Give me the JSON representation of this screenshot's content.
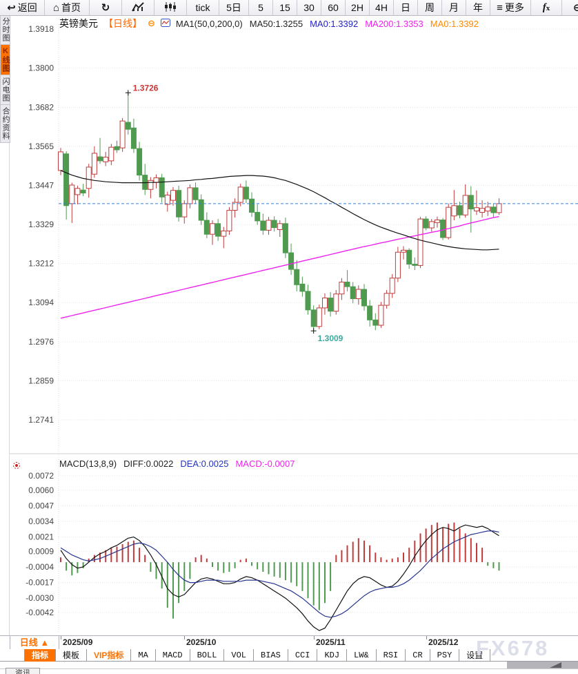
{
  "toolbar": {
    "items": [
      {
        "name": "back-button",
        "label": "返回",
        "icon": "back"
      },
      {
        "name": "home-button",
        "label": "首页",
        "icon": "home"
      },
      {
        "name": "refresh-button",
        "icon": "refresh"
      },
      {
        "name": "line-chart-button",
        "icon": "line-chart"
      },
      {
        "name": "candlestick-button",
        "icon": "candlestick"
      },
      {
        "name": "period-tick",
        "label": "tick"
      },
      {
        "name": "period-5d",
        "label": "5日"
      },
      {
        "name": "period-5",
        "label": "5"
      },
      {
        "name": "period-15",
        "label": "15"
      },
      {
        "name": "period-30",
        "label": "30"
      },
      {
        "name": "period-60",
        "label": "60"
      },
      {
        "name": "period-2h",
        "label": "2H"
      },
      {
        "name": "period-4h",
        "label": "4H"
      },
      {
        "name": "period-day",
        "label": "日"
      },
      {
        "name": "period-week",
        "label": "周"
      },
      {
        "name": "period-month",
        "label": "月"
      },
      {
        "name": "period-year",
        "label": "年"
      },
      {
        "name": "more-button",
        "label": "更多",
        "icon": "menu"
      },
      {
        "name": "fx-button",
        "label": "fx",
        "icon": "fx"
      },
      {
        "name": "zoom-out-button",
        "icon": "zoom-out"
      },
      {
        "name": "zoom-in-button",
        "icon": "zoom-in"
      }
    ]
  },
  "sidebar": {
    "items": [
      {
        "name": "sidebar-item-time-chart",
        "label": "分时图",
        "active": false
      },
      {
        "name": "sidebar-item-kline-chart",
        "label": "K线图",
        "active": true
      },
      {
        "name": "sidebar-item-lightning-chart",
        "label": "闪电图",
        "active": false
      },
      {
        "name": "sidebar-item-contract-info",
        "label": "合约资料",
        "active": false
      }
    ]
  },
  "price_header": {
    "symbol": "英镑美元",
    "period": "【日线】",
    "collapse_glyph": "⊖",
    "legend": [
      {
        "text": "MA1(50,0,200,0)",
        "color": "#222222"
      },
      {
        "text": "MA50:1.3255",
        "color": "#222222"
      },
      {
        "text": "MA0:1.3392",
        "color": "#2222cc"
      },
      {
        "text": "MA200:1.3353",
        "color": "#ee22ee"
      },
      {
        "text": "MA0:1.3392",
        "color": "#ff8800"
      }
    ]
  },
  "macd_header": {
    "items": [
      {
        "text": "MACD(13,8,9)",
        "color": "#222222"
      },
      {
        "text": "DIFF:0.0022",
        "color": "#222222"
      },
      {
        "text": "DEA:0.0025",
        "color": "#2233bb"
      },
      {
        "text": "MACD:-0.0007",
        "color": "#ee22ee"
      }
    ]
  },
  "x_axis": {
    "period_button": "日线 ▲"
  },
  "indicator_bar": {
    "tabs": [
      {
        "name": "tab-indicator",
        "label": "指标",
        "state": "active"
      },
      {
        "name": "tab-template",
        "label": "模板",
        "state": ""
      },
      {
        "name": "tab-vip-indicator",
        "label": "VIP指标",
        "state": "vip"
      },
      {
        "name": "tab-ma",
        "label": "MA",
        "state": "mono"
      },
      {
        "name": "tab-macd",
        "label": "MACD",
        "state": "mono"
      },
      {
        "name": "tab-boll",
        "label": "BOLL",
        "state": "mono"
      },
      {
        "name": "tab-vol",
        "label": "VOL",
        "state": "mono"
      },
      {
        "name": "tab-bias",
        "label": "BIAS",
        "state": "mono"
      },
      {
        "name": "tab-cci",
        "label": "CCI",
        "state": "mono"
      },
      {
        "name": "tab-kdj",
        "label": "KDJ",
        "state": "mono"
      },
      {
        "name": "tab-lw",
        "label": "LW&",
        "state": "mono"
      },
      {
        "name": "tab-rsi",
        "label": "RSI",
        "state": "mono"
      },
      {
        "name": "tab-cr",
        "label": "CR",
        "state": "mono"
      },
      {
        "name": "tab-psy",
        "label": "PSY",
        "state": "mono"
      },
      {
        "name": "tab-settings",
        "label": "设置",
        "state": ""
      }
    ]
  },
  "watermark": "FX678",
  "bottom_tab": "资讯",
  "chart_data": {
    "type": "candlestick+macd",
    "symbol": "英镑美元",
    "period": "日线",
    "colors": {
      "up": "#c23b3b",
      "down": "#4e9b50",
      "ma50": "#111111",
      "ma200": "#ee22ee",
      "price_line": "#2b7fd9",
      "diff": "#111111",
      "dea": "#26338f",
      "high_label": "#cc3333",
      "low_label": "#3aa99f",
      "grid": "#e6e6e6",
      "axis_text": "#444444"
    },
    "x_labels": [
      {
        "text": "2025/09",
        "index": 0
      },
      {
        "text": "2025/10",
        "index": 22
      },
      {
        "text": "2025/11",
        "index": 45
      },
      {
        "text": "2025/12",
        "index": 65
      }
    ],
    "price_pane": {
      "y_ticks": [
        1.3918,
        1.38,
        1.3682,
        1.3565,
        1.3447,
        1.3329,
        1.3212,
        1.3094,
        1.2976,
        1.2859,
        1.2741
      ],
      "current_price": 1.3392,
      "high_label": {
        "text": "1.3726",
        "index": 12,
        "price": 1.3726
      },
      "low_label": {
        "text": "1.3009",
        "index": 45,
        "price": 1.3009
      },
      "candles": [
        [
          1.3492,
          1.356,
          1.3478,
          1.3548
        ],
        [
          1.3542,
          1.355,
          1.3344,
          1.3386
        ],
        [
          1.3392,
          1.3455,
          1.3334,
          1.3448
        ],
        [
          1.3419,
          1.3446,
          1.339,
          1.3438
        ],
        [
          1.3433,
          1.3452,
          1.3415,
          1.3424
        ],
        [
          1.3438,
          1.3512,
          1.341,
          1.3502
        ],
        [
          1.3481,
          1.3565,
          1.347,
          1.3544
        ],
        [
          1.3533,
          1.359,
          1.3512,
          1.3521
        ],
        [
          1.3518,
          1.3548,
          1.3505,
          1.3532
        ],
        [
          1.3521,
          1.3572,
          1.3508,
          1.3562
        ],
        [
          1.3564,
          1.3582,
          1.3545,
          1.3554
        ],
        [
          1.356,
          1.365,
          1.3548,
          1.3641
        ],
        [
          1.3637,
          1.3726,
          1.36,
          1.3616
        ],
        [
          1.362,
          1.3648,
          1.3545,
          1.3558
        ],
        [
          1.3558,
          1.3578,
          1.3462,
          1.3478
        ],
        [
          1.3478,
          1.3512,
          1.3418,
          1.3435
        ],
        [
          1.3435,
          1.3472,
          1.3408,
          1.3462
        ],
        [
          1.3456,
          1.348,
          1.3438,
          1.347
        ],
        [
          1.347,
          1.3482,
          1.3395,
          1.3412
        ],
        [
          1.339,
          1.3428,
          1.3368,
          1.3418
        ],
        [
          1.3402,
          1.3442,
          1.3386,
          1.3432
        ],
        [
          1.3432,
          1.3446,
          1.3338,
          1.3352
        ],
        [
          1.3352,
          1.3402,
          1.3332,
          1.3392
        ],
        [
          1.3392,
          1.345,
          1.3378,
          1.344
        ],
        [
          1.344,
          1.3456,
          1.3392,
          1.3404
        ],
        [
          1.3404,
          1.342,
          1.3328,
          1.3342
        ],
        [
          1.3342,
          1.3366,
          1.3288,
          1.33
        ],
        [
          1.33,
          1.3342,
          1.3268,
          1.3332
        ],
        [
          1.3332,
          1.3346,
          1.328,
          1.3294
        ],
        [
          1.3294,
          1.3322,
          1.3258,
          1.331
        ],
        [
          1.331,
          1.3382,
          1.3298,
          1.3372
        ],
        [
          1.3372,
          1.3408,
          1.335,
          1.3396
        ],
        [
          1.3396,
          1.3452,
          1.3384,
          1.3442
        ],
        [
          1.3442,
          1.3462,
          1.3394,
          1.3406
        ],
        [
          1.3406,
          1.3426,
          1.3352,
          1.3366
        ],
        [
          1.3366,
          1.339,
          1.3328,
          1.334
        ],
        [
          1.334,
          1.3362,
          1.3298,
          1.3312
        ],
        [
          1.3312,
          1.3352,
          1.3298,
          1.3342
        ],
        [
          1.3342,
          1.3354,
          1.3308,
          1.332
        ],
        [
          1.3314,
          1.3342,
          1.3292,
          1.3332
        ],
        [
          1.3332,
          1.335,
          1.3228,
          1.3244
        ],
        [
          1.3244,
          1.3272,
          1.3178,
          1.3194
        ],
        [
          1.3194,
          1.3222,
          1.3128,
          1.3148
        ],
        [
          1.315,
          1.3172,
          1.3112,
          1.3128
        ],
        [
          1.3128,
          1.3148,
          1.3058,
          1.3072
        ],
        [
          1.3072,
          1.3086,
          1.3009,
          1.3022
        ],
        [
          1.3022,
          1.3088,
          1.3014,
          1.3078
        ],
        [
          1.3078,
          1.3122,
          1.3058,
          1.3108
        ],
        [
          1.3108,
          1.3126,
          1.3052,
          1.3068
        ],
        [
          1.3068,
          1.3132,
          1.3058,
          1.312
        ],
        [
          1.312,
          1.3168,
          1.3102,
          1.3156
        ],
        [
          1.3156,
          1.3192,
          1.3128,
          1.3142
        ],
        [
          1.3142,
          1.3156,
          1.3092,
          1.3106
        ],
        [
          1.3106,
          1.3146,
          1.3088,
          1.3134
        ],
        [
          1.3134,
          1.315,
          1.307,
          1.3084
        ],
        [
          1.3084,
          1.3102,
          1.3022,
          1.3042
        ],
        [
          1.3042,
          1.3062,
          1.3011,
          1.3026
        ],
        [
          1.3026,
          1.3096,
          1.3018,
          1.3086
        ],
        [
          1.3086,
          1.3132,
          1.3076,
          1.3122
        ],
        [
          1.3122,
          1.318,
          1.3108,
          1.3168
        ],
        [
          1.3168,
          1.3262,
          1.3156,
          1.3246
        ],
        [
          1.3246,
          1.3264,
          1.3224,
          1.3252
        ],
        [
          1.3252,
          1.3258,
          1.3196,
          1.321
        ],
        [
          1.321,
          1.323,
          1.3192,
          1.3206
        ],
        [
          1.3206,
          1.3352,
          1.3198,
          1.3346
        ],
        [
          1.3346,
          1.3354,
          1.3312,
          1.3319
        ],
        [
          1.3319,
          1.3346,
          1.3308,
          1.3338
        ],
        [
          1.3335,
          1.3353,
          1.332,
          1.3343
        ],
        [
          1.3343,
          1.3349,
          1.3282,
          1.329
        ],
        [
          1.329,
          1.3393,
          1.3284,
          1.3381
        ],
        [
          1.3355,
          1.3433,
          1.3342,
          1.3386
        ],
        [
          1.3386,
          1.3398,
          1.3348,
          1.3358
        ],
        [
          1.3358,
          1.345,
          1.335,
          1.3417
        ],
        [
          1.3417,
          1.3445,
          1.3305,
          1.3376
        ],
        [
          1.337,
          1.3432,
          1.3358,
          1.338
        ],
        [
          1.3366,
          1.3402,
          1.335,
          1.3378
        ],
        [
          1.337,
          1.3398,
          1.3355,
          1.3382
        ],
        [
          1.3382,
          1.3392,
          1.3352,
          1.3365
        ],
        [
          1.3365,
          1.3408,
          1.3358,
          1.3392
        ]
      ],
      "ma50": [
        1.3492,
        1.3485,
        1.3478,
        1.3473,
        1.3468,
        1.3465,
        1.3462,
        1.346,
        1.3458,
        1.3457,
        1.3456,
        1.3455,
        1.3455,
        1.3455,
        1.3455,
        1.3455,
        1.3456,
        1.3456,
        1.3457,
        1.3458,
        1.3459,
        1.346,
        1.3461,
        1.3462,
        1.3464,
        1.3465,
        1.3467,
        1.3468,
        1.347,
        1.3472,
        1.3474,
        1.3475,
        1.3476,
        1.3477,
        1.3477,
        1.3476,
        1.3475,
        1.3473,
        1.347,
        1.3466,
        1.3462,
        1.3456,
        1.345,
        1.3443,
        1.3436,
        1.3428,
        1.3419,
        1.341,
        1.34,
        1.3391,
        1.3381,
        1.3372,
        1.3362,
        1.3353,
        1.3344,
        1.3336,
        1.3328,
        1.3321,
        1.3315,
        1.3309,
        1.3303,
        1.3298,
        1.3292,
        1.3287,
        1.3282,
        1.3278,
        1.3274,
        1.327,
        1.3266,
        1.3263,
        1.326,
        1.3258,
        1.3256,
        1.3255,
        1.3254,
        1.3253,
        1.3253,
        1.3254,
        1.3255
      ],
      "ma200": [
        1.3047,
        1.3051,
        1.3055,
        1.3059,
        1.3063,
        1.3067,
        1.3071,
        1.3075,
        1.3079,
        1.3083,
        1.3087,
        1.3091,
        1.3095,
        1.3099,
        1.3103,
        1.3107,
        1.3111,
        1.3115,
        1.3119,
        1.3123,
        1.3127,
        1.3131,
        1.3135,
        1.3139,
        1.3143,
        1.3147,
        1.3151,
        1.3155,
        1.3159,
        1.3163,
        1.3167,
        1.3171,
        1.3175,
        1.3179,
        1.3183,
        1.3187,
        1.3191,
        1.3195,
        1.3199,
        1.3203,
        1.3207,
        1.3211,
        1.3215,
        1.3219,
        1.3223,
        1.3227,
        1.3231,
        1.3235,
        1.3239,
        1.3243,
        1.3247,
        1.3251,
        1.3255,
        1.3259,
        1.3263,
        1.3266,
        1.327,
        1.3274,
        1.3277,
        1.3281,
        1.3285,
        1.3288,
        1.3292,
        1.3295,
        1.3299,
        1.3302,
        1.3306,
        1.3309,
        1.3313,
        1.3317,
        1.3321,
        1.3325,
        1.333,
        1.3334,
        1.3338,
        1.3342,
        1.3346,
        1.335,
        1.3353
      ]
    },
    "macd_pane": {
      "title": "MACD(13,8,9)",
      "diff_value": 0.0022,
      "dea_value": 0.0025,
      "macd_value": -0.0007,
      "y_ticks": [
        0.0072,
        0.006,
        0.0047,
        0.0034,
        0.0021,
        0.0009,
        -0.0004,
        -0.0017,
        -0.003,
        -0.0042
      ],
      "hist": [
        0.0004,
        -0.0007,
        -0.0011,
        -0.0009,
        -0.0005,
        0.0003,
        0.0006,
        0.0008,
        0.001,
        0.0012,
        0.0013,
        0.0015,
        0.0017,
        0.0018,
        0.0012,
        0.0006,
        -0.0008,
        -0.0014,
        -0.0022,
        -0.0038,
        -0.0047,
        -0.0034,
        -0.0024,
        -0.0014,
        0.0004,
        0.0006,
        0.0003,
        -0.0004,
        -0.0007,
        -0.0009,
        -0.0008,
        -0.0005,
        0.0002,
        0.0003,
        -0.0003,
        -0.0006,
        -0.0008,
        -0.001,
        -0.0012,
        -0.0013,
        -0.0015,
        -0.0017,
        -0.002,
        -0.0024,
        -0.003,
        -0.0036,
        -0.004,
        -0.0034,
        -0.0024,
        0.0006,
        0.001,
        0.0014,
        0.0017,
        0.002,
        0.0018,
        0.0014,
        0.0008,
        0.0004,
        0.0002,
        0.0003,
        0.0004,
        0.0008,
        0.0012,
        0.0018,
        0.0024,
        0.0028,
        0.0031,
        0.0033,
        0.0029,
        0.0032,
        0.0033,
        0.0028,
        0.0024,
        0.002,
        0.0016,
        0.0012,
        -0.0003,
        -0.0005,
        -0.0007
      ],
      "diff": [
        0.001,
        0.0003,
        -0.0002,
        -0.0005,
        -0.0004,
        0.0,
        0.0004,
        0.0007,
        0.0009,
        0.0012,
        0.0014,
        0.0017,
        0.002,
        0.0021,
        0.0018,
        0.0013,
        0.0006,
        -0.0002,
        -0.0012,
        -0.0022,
        -0.0027,
        -0.0029,
        -0.0027,
        -0.0022,
        -0.0017,
        -0.0014,
        -0.0013,
        -0.0014,
        -0.0016,
        -0.0018,
        -0.0018,
        -0.0017,
        -0.0014,
        -0.0012,
        -0.0013,
        -0.0015,
        -0.0018,
        -0.0021,
        -0.0024,
        -0.0027,
        -0.003,
        -0.0034,
        -0.0038,
        -0.0043,
        -0.0049,
        -0.0054,
        -0.0057,
        -0.0055,
        -0.0048,
        -0.004,
        -0.0032,
        -0.0024,
        -0.0018,
        -0.0014,
        -0.0012,
        -0.0013,
        -0.0016,
        -0.0019,
        -0.0021,
        -0.002,
        -0.0016,
        -0.001,
        -0.0003,
        0.0005,
        0.0012,
        0.0018,
        0.0023,
        0.0027,
        0.0029,
        0.0028,
        0.0026,
        0.0029,
        0.0031,
        0.003,
        0.0029,
        0.003,
        0.0028,
        0.0025,
        0.0022
      ],
      "dea": [
        0.0012,
        0.0009,
        0.0006,
        0.0004,
        0.0002,
        0.0001,
        0.0002,
        0.0003,
        0.0005,
        0.0007,
        0.0009,
        0.0011,
        0.0013,
        0.0015,
        0.0016,
        0.0015,
        0.0013,
        0.001,
        0.0005,
        0.0,
        -0.0006,
        -0.0011,
        -0.0015,
        -0.0017,
        -0.0017,
        -0.0016,
        -0.0015,
        -0.0015,
        -0.0015,
        -0.0016,
        -0.0016,
        -0.0016,
        -0.0016,
        -0.0015,
        -0.0015,
        -0.0015,
        -0.0016,
        -0.0017,
        -0.0018,
        -0.002,
        -0.0022,
        -0.0024,
        -0.0027,
        -0.003,
        -0.0034,
        -0.0038,
        -0.0042,
        -0.0045,
        -0.0046,
        -0.0045,
        -0.0043,
        -0.004,
        -0.0036,
        -0.0032,
        -0.0028,
        -0.0025,
        -0.0023,
        -0.0022,
        -0.0021,
        -0.0021,
        -0.002,
        -0.0018,
        -0.0015,
        -0.0011,
        -0.0007,
        -0.0002,
        0.0003,
        0.0007,
        0.0011,
        0.0014,
        0.0017,
        0.0019,
        0.0021,
        0.0023,
        0.0024,
        0.0025,
        0.0026,
        0.0026,
        0.0025
      ]
    }
  }
}
